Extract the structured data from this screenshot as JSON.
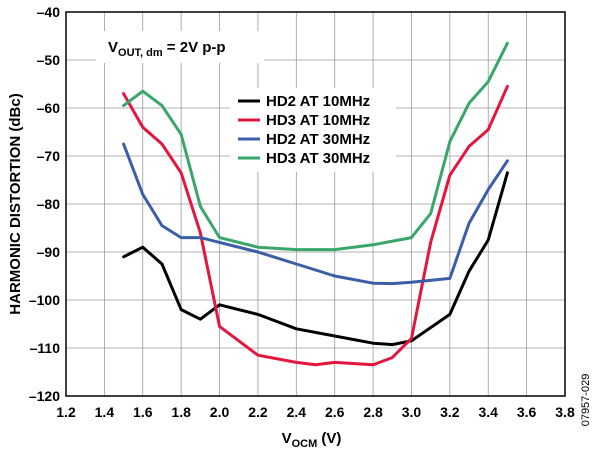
{
  "chart_data": {
    "type": "line",
    "xlabel_main": "V",
    "xlabel_sub": "OCM",
    "xlabel_suffix": " (V)",
    "ylabel": "HARMONIC DISTORTION (dBc)",
    "xlim": [
      1.2,
      3.8
    ],
    "ylim": [
      -120,
      -40
    ],
    "x_ticks": [
      "1.2",
      "1.4",
      "1.6",
      "1.8",
      "2.0",
      "2.2",
      "2.4",
      "2.6",
      "2.8",
      "3.0",
      "3.2",
      "3.4",
      "3.6",
      "3.8"
    ],
    "y_ticks": [
      "–40",
      "–50",
      "–60",
      "–70",
      "–80",
      "–90",
      "–100",
      "–110",
      "–120"
    ],
    "annotation": {
      "main": "V",
      "sub": "OUT, dm",
      "rest": " = 2V p-p"
    },
    "figure_id": "07957-029",
    "series": [
      {
        "name": "HD2 AT 10MHz",
        "color": "#000000",
        "points": [
          [
            1.5,
            -91
          ],
          [
            1.6,
            -89
          ],
          [
            1.7,
            -92.5
          ],
          [
            1.8,
            -102
          ],
          [
            1.9,
            -104
          ],
          [
            2.0,
            -101
          ],
          [
            2.2,
            -103
          ],
          [
            2.4,
            -106
          ],
          [
            2.6,
            -107.5
          ],
          [
            2.8,
            -109
          ],
          [
            2.9,
            -109.3
          ],
          [
            3.0,
            -108.5
          ],
          [
            3.2,
            -103
          ],
          [
            3.3,
            -94
          ],
          [
            3.4,
            -87.5
          ],
          [
            3.5,
            -73.5
          ]
        ]
      },
      {
        "name": "HD3 AT 10MHz",
        "color": "#e3173e",
        "points": [
          [
            1.5,
            -57
          ],
          [
            1.6,
            -64
          ],
          [
            1.7,
            -67.5
          ],
          [
            1.8,
            -73.5
          ],
          [
            1.9,
            -86
          ],
          [
            2.0,
            -105.5
          ],
          [
            2.2,
            -111.5
          ],
          [
            2.4,
            -113
          ],
          [
            2.5,
            -113.5
          ],
          [
            2.6,
            -113
          ],
          [
            2.8,
            -113.5
          ],
          [
            2.9,
            -112
          ],
          [
            3.0,
            -108
          ],
          [
            3.1,
            -88
          ],
          [
            3.2,
            -74
          ],
          [
            3.3,
            -68
          ],
          [
            3.4,
            -64.5
          ],
          [
            3.5,
            -55.5
          ]
        ]
      },
      {
        "name": "HD2 AT 30MHz",
        "color": "#3a5ea8",
        "points": [
          [
            1.5,
            -67.5
          ],
          [
            1.6,
            -78
          ],
          [
            1.7,
            -84.5
          ],
          [
            1.8,
            -87
          ],
          [
            1.9,
            -87
          ],
          [
            2.0,
            -88
          ],
          [
            2.2,
            -90
          ],
          [
            2.4,
            -92.5
          ],
          [
            2.6,
            -95
          ],
          [
            2.8,
            -96.5
          ],
          [
            2.9,
            -96.6
          ],
          [
            3.0,
            -96.3
          ],
          [
            3.2,
            -95.5
          ],
          [
            3.3,
            -84
          ],
          [
            3.4,
            -77
          ],
          [
            3.5,
            -71
          ]
        ]
      },
      {
        "name": "HD3 AT 30MHz",
        "color": "#3aa66a",
        "points": [
          [
            1.5,
            -59.5
          ],
          [
            1.6,
            -56.5
          ],
          [
            1.7,
            -59.5
          ],
          [
            1.8,
            -65.5
          ],
          [
            1.9,
            -80.5
          ],
          [
            2.0,
            -87
          ],
          [
            2.2,
            -89
          ],
          [
            2.4,
            -89.5
          ],
          [
            2.6,
            -89.5
          ],
          [
            2.8,
            -88.5
          ],
          [
            3.0,
            -87
          ],
          [
            3.1,
            -82
          ],
          [
            3.2,
            -67
          ],
          [
            3.3,
            -59
          ],
          [
            3.4,
            -54.5
          ],
          [
            3.5,
            -46.5
          ]
        ]
      }
    ]
  }
}
